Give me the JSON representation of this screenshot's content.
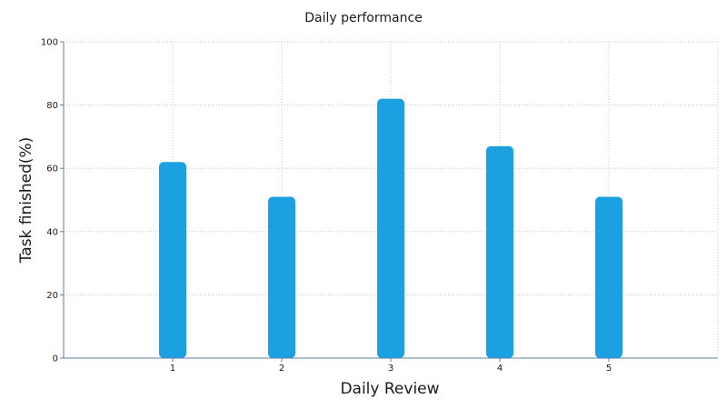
{
  "chart_data": {
    "type": "bar",
    "title": "Daily performance",
    "xlabel": "Daily Review",
    "ylabel": "Task finished(%)",
    "categories": [
      "1",
      "2",
      "3",
      "4",
      "5"
    ],
    "values": [
      62,
      51,
      82,
      67,
      51
    ],
    "ylim": [
      0,
      100
    ],
    "yticks": [
      "0",
      "20",
      "40",
      "60",
      "80",
      "100"
    ],
    "grid": true,
    "legend": "none",
    "colors": {
      "bar": "#1ba1e2",
      "axis": "#5b7fa6",
      "grid": "#c8c8c8"
    }
  }
}
